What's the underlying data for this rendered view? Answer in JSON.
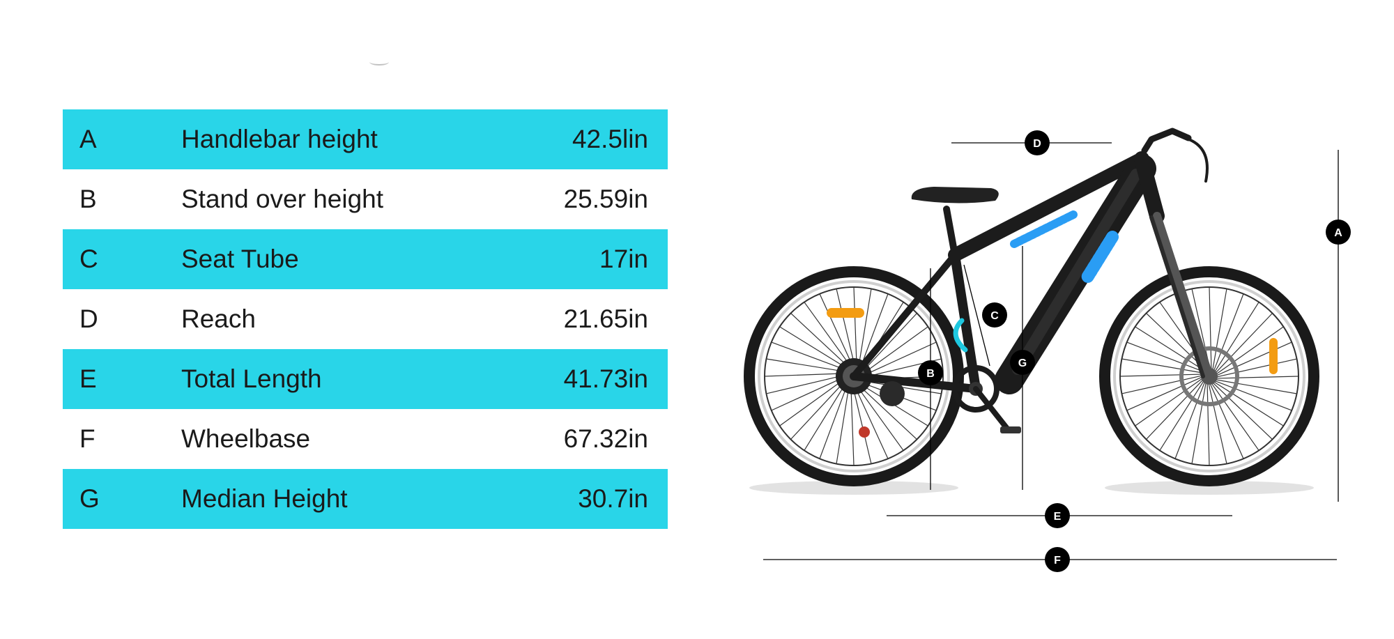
{
  "specs": [
    {
      "letter": "A",
      "name": "Handlebar height",
      "value": "42.5lin"
    },
    {
      "letter": "B",
      "name": "Stand over height",
      "value": "25.59in"
    },
    {
      "letter": "C",
      "name": "Seat Tube",
      "value": "17in"
    },
    {
      "letter": "D",
      "name": "Reach",
      "value": "21.65in"
    },
    {
      "letter": "E",
      "name": "Total Length",
      "value": "41.73in"
    },
    {
      "letter": "F",
      "name": "Wheelbase",
      "value": "67.32in"
    },
    {
      "letter": "G",
      "name": "Median Height",
      "value": "30.7in"
    }
  ],
  "markers": {
    "a": "A",
    "b": "B",
    "c": "C",
    "d": "D",
    "e": "E",
    "f": "F",
    "g": "G"
  },
  "colors": {
    "row_highlight": "#29d5e8",
    "frame": "#1c1c1c",
    "frame_accent": "#2a9df4",
    "marker": "#000000"
  }
}
